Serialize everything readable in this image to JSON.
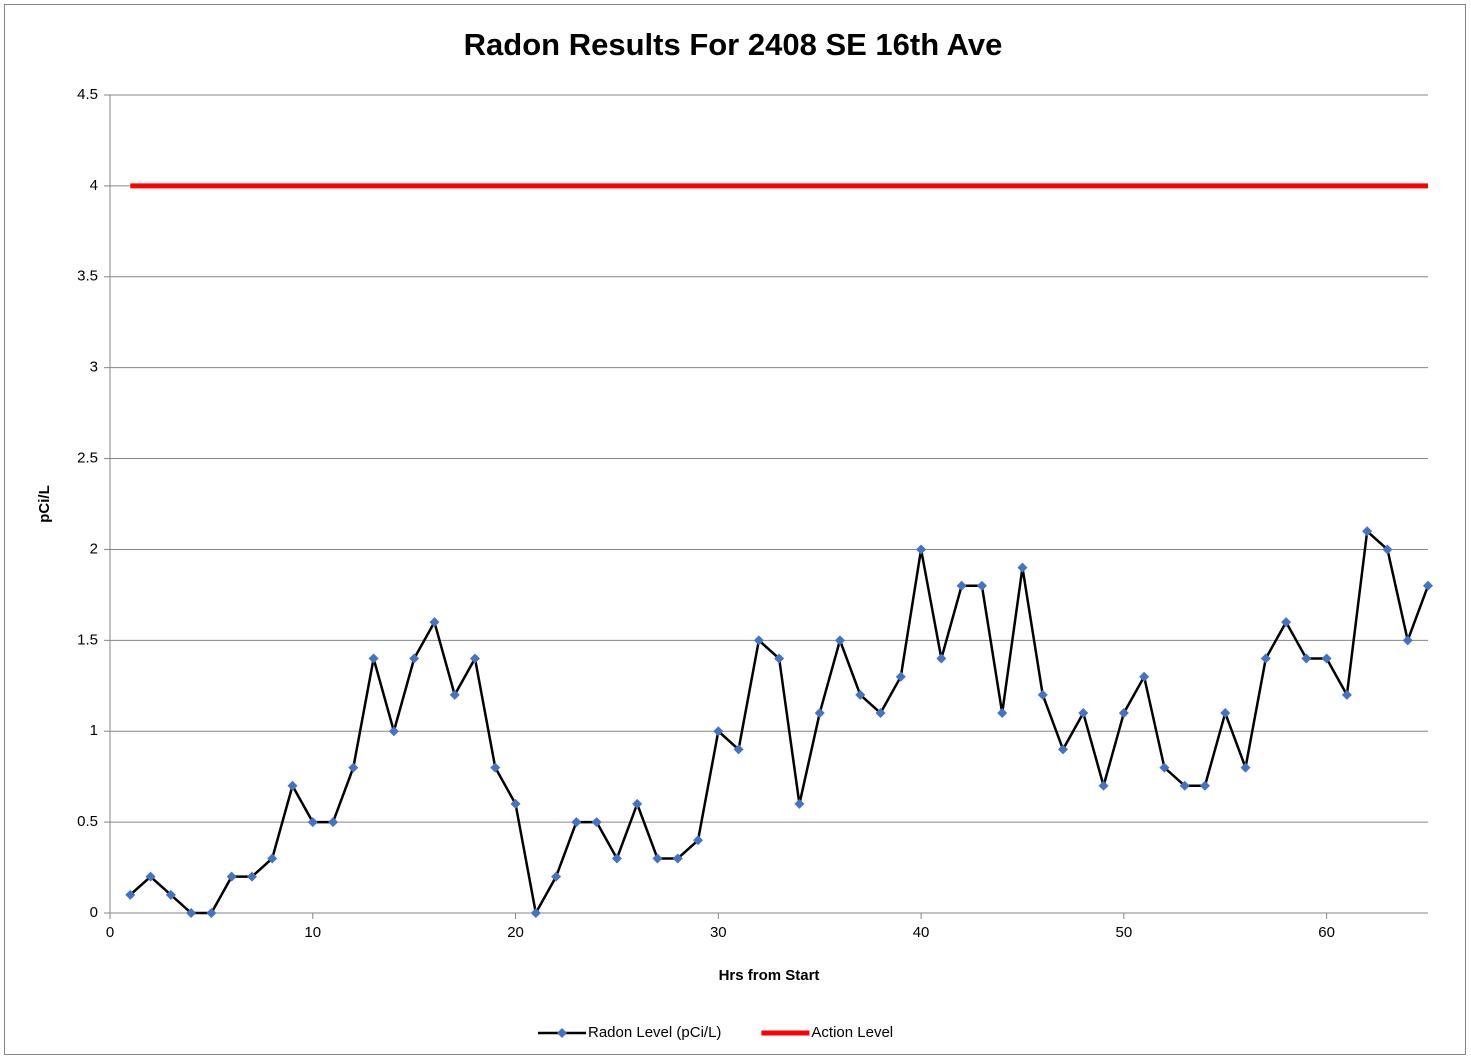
{
  "chart_data": {
    "type": "line",
    "title": "Radon Results For 2408 SE 16th Ave",
    "x_label": "Hrs from Start",
    "y_label": "pCi/L",
    "x": [
      1,
      2,
      3,
      4,
      5,
      6,
      7,
      8,
      9,
      10,
      11,
      12,
      13,
      14,
      15,
      16,
      17,
      18,
      19,
      20,
      21,
      22,
      23,
      24,
      25,
      26,
      27,
      28,
      29,
      30,
      31,
      32,
      33,
      34,
      35,
      36,
      37,
      38,
      39,
      40,
      41,
      42,
      43,
      44,
      45,
      46,
      47,
      48,
      49,
      50,
      51,
      52,
      53,
      54,
      55,
      56,
      57,
      58,
      59,
      60,
      61,
      62,
      63,
      64,
      65
    ],
    "series": [
      {
        "name": "Radon Level (pCi/L)",
        "color": "#000000",
        "marker_color": "#4472c4",
        "marker": true,
        "values": [
          0.1,
          0.2,
          0.1,
          0,
          0,
          0.2,
          0.2,
          0.3,
          0.7,
          0.5,
          0.5,
          0.8,
          1.4,
          1.0,
          1.4,
          1.6,
          1.2,
          1.4,
          0.8,
          0.6,
          0,
          0.2,
          0.5,
          0.5,
          0.3,
          0.6,
          0.3,
          0.3,
          0.4,
          1.0,
          0.9,
          1.5,
          1.4,
          0.6,
          1.1,
          1.5,
          1.2,
          1.1,
          1.3,
          2.0,
          1.4,
          1.8,
          1.8,
          1.1,
          1.9,
          1.2,
          0.9,
          1.1,
          0.7,
          1.1,
          1.3,
          0.8,
          0.7,
          0.7,
          1.1,
          0.8,
          1.4,
          1.6,
          1.4,
          1.4,
          1.2,
          2.1,
          2.0,
          1.5,
          1.8
        ]
      },
      {
        "name": "Action Level",
        "color": "#ff0000",
        "marker": false,
        "values": [
          4,
          4,
          4,
          4,
          4,
          4,
          4,
          4,
          4,
          4,
          4,
          4,
          4,
          4,
          4,
          4,
          4,
          4,
          4,
          4,
          4,
          4,
          4,
          4,
          4,
          4,
          4,
          4,
          4,
          4,
          4,
          4,
          4,
          4,
          4,
          4,
          4,
          4,
          4,
          4,
          4,
          4,
          4,
          4,
          4,
          4,
          4,
          4,
          4,
          4,
          4,
          4,
          4,
          4,
          4,
          4,
          4,
          4,
          4,
          4,
          4,
          4,
          4,
          4,
          4
        ]
      }
    ],
    "xlim": [
      0,
      65
    ],
    "xticks": [
      0,
      10,
      20,
      30,
      40,
      50,
      60
    ],
    "ylim": [
      0,
      4.5
    ],
    "yticks": [
      0,
      0.5,
      1,
      1.5,
      2,
      2.5,
      3,
      3.5,
      4,
      4.5
    ],
    "grid": true,
    "legend": "bottom"
  }
}
